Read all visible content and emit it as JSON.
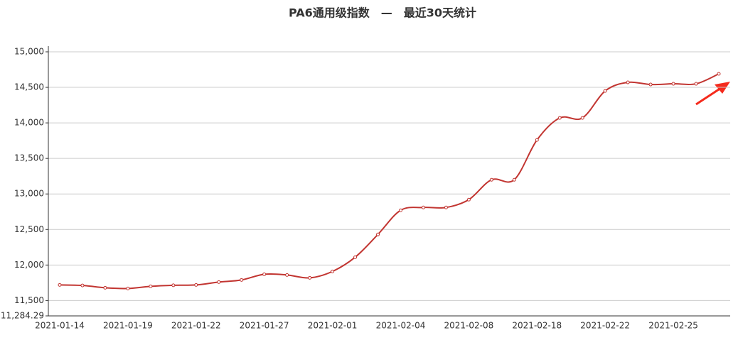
{
  "chart_data": {
    "type": "line",
    "title": "PA6通用级指数　—　最近30天统计",
    "categories": [
      "2021-01-14",
      null,
      null,
      "2021-01-19",
      null,
      null,
      "2021-01-22",
      null,
      null,
      "2021-01-27",
      null,
      null,
      "2021-02-01",
      null,
      null,
      "2021-02-04",
      null,
      null,
      "2021-02-08",
      null,
      null,
      "2021-02-18",
      null,
      null,
      "2021-02-22",
      null,
      null,
      "2021-02-25",
      null,
      null
    ],
    "values": [
      11720,
      11713,
      11680,
      11670,
      11700,
      11715,
      11720,
      11760,
      11790,
      11870,
      11860,
      11820,
      11910,
      12110,
      12430,
      12770,
      12810,
      12810,
      12920,
      13200,
      13200,
      13760,
      14070,
      14070,
      14450,
      14570,
      14540,
      14550,
      14550,
      14690
    ],
    "color": "#c23531",
    "smooth": true,
    "ylim": [
      11284.29,
      15000
    ],
    "yticks": [
      {
        "value": 11284.29,
        "label": "11,284.29"
      },
      {
        "value": 11500,
        "label": "11,500"
      },
      {
        "value": 12000,
        "label": "12,000"
      },
      {
        "value": 12500,
        "label": "12,500"
      },
      {
        "value": 13000,
        "label": "13,000"
      },
      {
        "value": 13500,
        "label": "13,500"
      },
      {
        "value": 14000,
        "label": "14,000"
      },
      {
        "value": 14500,
        "label": "14,500"
      },
      {
        "value": 15000,
        "label": "15,000"
      }
    ],
    "grid": true
  }
}
